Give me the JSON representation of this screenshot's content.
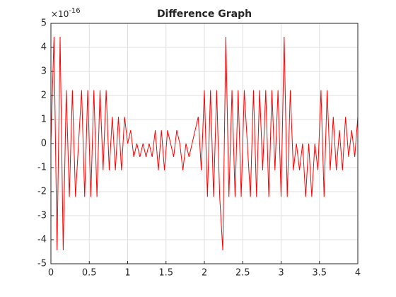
{
  "chart_data": {
    "type": "line",
    "title": "Difference Graph",
    "y_multiplier": {
      "base": "×10",
      "exponent": "-16"
    },
    "x": [
      0,
      0.04,
      0.08,
      0.12,
      0.16,
      0.2,
      0.24,
      0.28,
      0.32,
      0.36,
      0.4,
      0.44,
      0.48,
      0.52,
      0.56,
      0.6,
      0.64,
      0.68,
      0.72,
      0.76,
      0.8,
      0.84,
      0.88,
      0.92,
      0.96,
      1,
      1.04,
      1.08,
      1.12,
      1.16,
      1.2,
      1.24,
      1.28,
      1.32,
      1.36,
      1.4,
      1.44,
      1.48,
      1.52,
      1.56,
      1.6,
      1.64,
      1.68,
      1.72,
      1.76,
      1.8,
      1.84,
      1.88,
      1.92,
      1.96,
      2,
      2.04,
      2.08,
      2.12,
      2.16,
      2.2,
      2.24,
      2.28,
      2.32,
      2.36,
      2.4,
      2.44,
      2.48,
      2.52,
      2.56,
      2.6,
      2.64,
      2.68,
      2.72,
      2.76,
      2.8,
      2.84,
      2.88,
      2.92,
      2.96,
      3,
      3.04,
      3.08,
      3.12,
      3.16,
      3.2,
      3.24,
      3.28,
      3.32,
      3.36,
      3.4,
      3.44,
      3.48,
      3.52,
      3.56,
      3.6,
      3.64,
      3.68,
      3.72,
      3.76,
      3.8,
      3.84,
      3.88,
      3.92,
      3.96,
      4
    ],
    "series": [
      {
        "color": "#ff0000",
        "values": [
          0,
          4.44,
          -4.44,
          4.44,
          -4.44,
          2.22,
          -2.22,
          2.22,
          -2.22,
          0,
          2.22,
          -2.22,
          2.22,
          -2.22,
          2.22,
          -2.22,
          2.22,
          -1.11,
          2.22,
          -1.11,
          1.11,
          -1.11,
          1.11,
          -1.11,
          1.11,
          0,
          0.555,
          -0.555,
          0,
          -0.555,
          0,
          -0.555,
          0,
          -0.555,
          0.555,
          -1.11,
          0.555,
          -1.11,
          0.555,
          0,
          -0.555,
          0.555,
          0,
          -1.11,
          0,
          -0.555,
          0,
          0.555,
          1.11,
          -1.11,
          2.22,
          -2.22,
          2.22,
          -2.22,
          2.22,
          -2.22,
          -4.44,
          4.44,
          -2.22,
          2.22,
          -2.22,
          2.22,
          -2.22,
          2.22,
          0,
          -2.22,
          2.22,
          -2.22,
          2.22,
          -1.11,
          2.22,
          -2.22,
          2.22,
          -1.11,
          2.22,
          -2.22,
          4.44,
          -2.22,
          2.22,
          -1.11,
          0,
          -1.11,
          0,
          -2.22,
          0,
          -2.22,
          0,
          -1.11,
          2.22,
          -2.22,
          2.22,
          -1.11,
          1.11,
          -1.11,
          0.555,
          -1.11,
          1.11,
          -0.555,
          0.555,
          -0.555,
          1.11
        ]
      }
    ],
    "xlim": [
      0,
      4
    ],
    "xticks": [
      0,
      0.5,
      1,
      1.5,
      2,
      2.5,
      3,
      3.5,
      4
    ],
    "ylim": [
      -5,
      5
    ],
    "yticks": [
      -5,
      -4,
      -3,
      -2,
      -1,
      0,
      1,
      2,
      3,
      4,
      5
    ],
    "grid": true
  }
}
